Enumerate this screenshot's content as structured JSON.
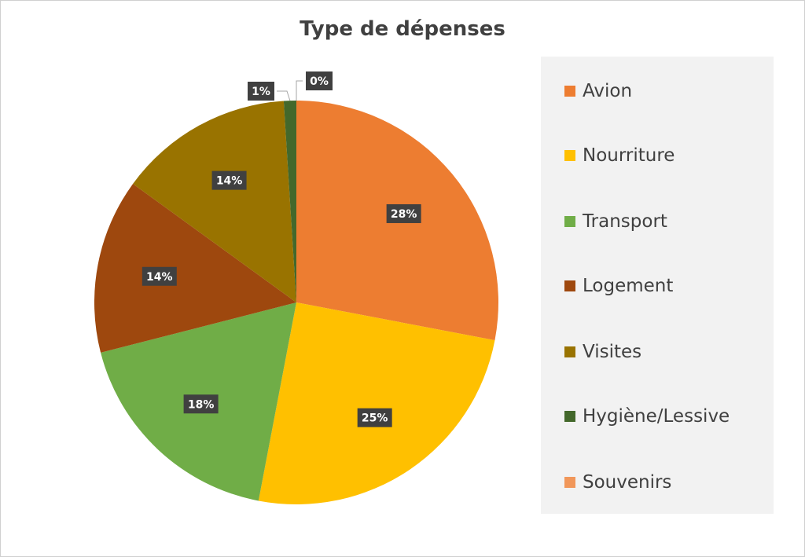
{
  "chart_data": {
    "type": "pie",
    "title": "Type de dépenses",
    "categories": [
      "Avion",
      "Nourriture",
      "Transport",
      "Logement",
      "Visites",
      "Hygiène/Lessive",
      "Souvenirs"
    ],
    "values": [
      28,
      25,
      18,
      14,
      14,
      1,
      0
    ],
    "data_labels": [
      "28%",
      "25%",
      "18%",
      "14%",
      "14%",
      "1%",
      "0%"
    ],
    "colors": [
      "#ED7D31",
      "#FFC000",
      "#70AD47",
      "#9E480E",
      "#997300",
      "#43682B",
      "#F1975A"
    ],
    "legend_position": "right"
  }
}
